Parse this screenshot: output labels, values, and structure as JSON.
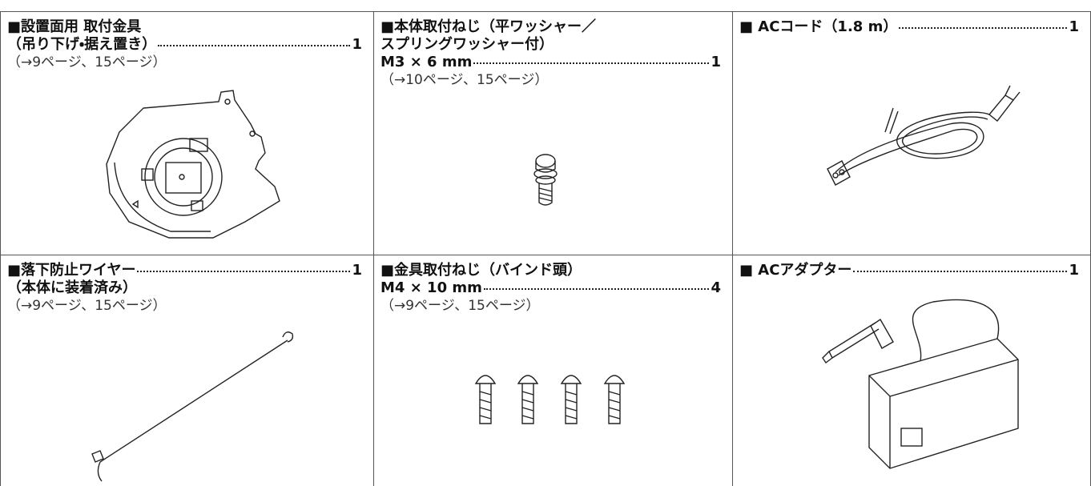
{
  "items": [
    {
      "lines": [
        {
          "text": "■設置面用 取付金具"
        },
        {
          "text": "（吊り下げ・据え置き）",
          "quantity": 1
        }
      ],
      "reference": "（→9ページ、15ページ）"
    },
    {
      "lines": [
        {
          "text": "■本体取付ねじ（平ワッシャー／"
        },
        {
          "text": "スプリングワッシャー付）"
        },
        {
          "text": "M3 × 6 mm",
          "quantity": 1
        }
      ],
      "reference": "（→10ページ、15ページ）"
    },
    {
      "lines": [
        {
          "text": "■ ACコード（1.8 m）",
          "quantity": 1
        }
      ]
    },
    {
      "lines": [
        {
          "text": "■落下防止ワイヤー",
          "quantity": 1
        },
        {
          "text": "（本体に装着済み）"
        }
      ],
      "reference": "（→9ページ、15ページ）"
    },
    {
      "lines": [
        {
          "text": "■金具取付ねじ（バインド頭）"
        },
        {
          "text": "M4 × 10 mm",
          "quantity": 4
        }
      ],
      "reference": "（→9ページ、15ページ）"
    },
    {
      "lines": [
        {
          "text": "■ ACアダプター",
          "quantity": 1
        }
      ]
    }
  ]
}
